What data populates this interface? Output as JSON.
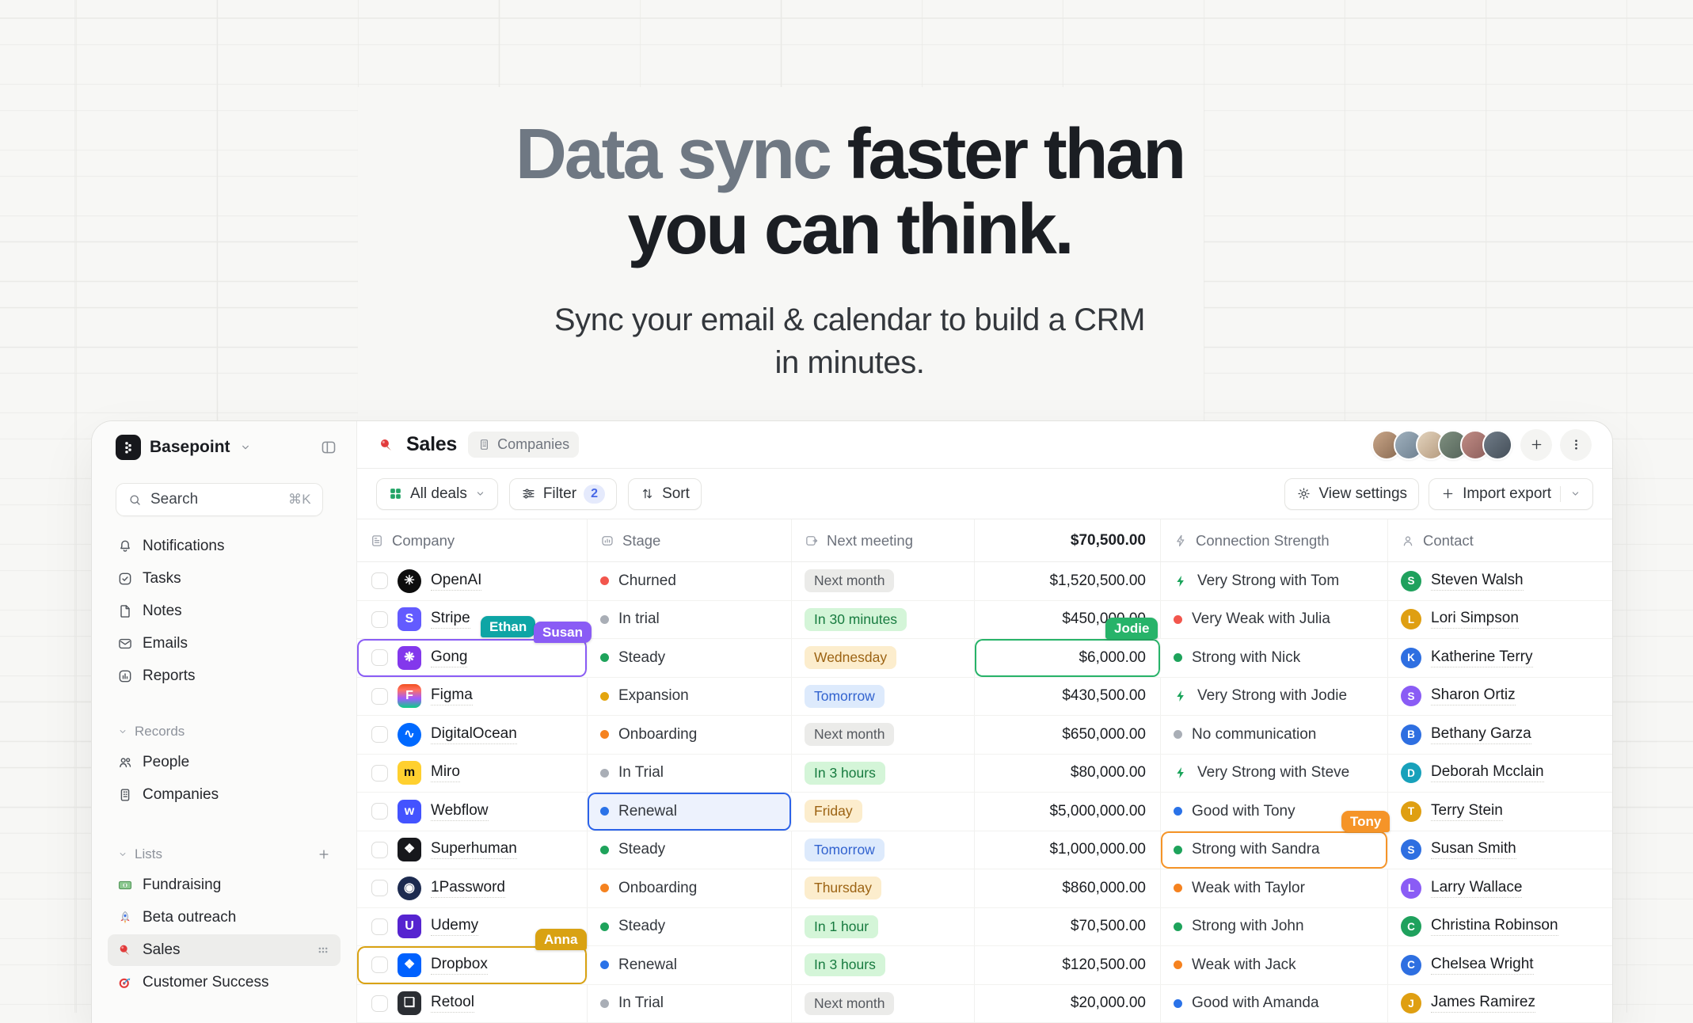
{
  "hero": {
    "title_muted": "Data sync",
    "title_rest": " faster than",
    "title_line2": "you can think.",
    "subtitle_line1": "Sync your email & calendar to build a CRM",
    "subtitle_line2": "in minutes."
  },
  "window": {
    "workspace": {
      "name": "Basepoint"
    },
    "sidebar": {
      "search": {
        "label": "Search",
        "shortcut": "⌘K"
      },
      "nav": [
        {
          "icon": "bell",
          "label": "Notifications"
        },
        {
          "icon": "task",
          "label": "Tasks"
        },
        {
          "icon": "note",
          "label": "Notes"
        },
        {
          "icon": "mail",
          "label": "Emails"
        },
        {
          "icon": "report",
          "label": "Reports"
        }
      ],
      "sections": [
        {
          "label": "Records",
          "has_add": false,
          "items": [
            {
              "icon": "people",
              "label": "People"
            },
            {
              "icon": "company",
              "label": "Companies"
            }
          ]
        },
        {
          "label": "Lists",
          "has_add": true,
          "items": [
            {
              "icon": "money",
              "label": "Fundraising"
            },
            {
              "icon": "rocket",
              "label": "Beta outreach"
            },
            {
              "icon": "pin",
              "label": "Sales",
              "active": true
            },
            {
              "icon": "target",
              "label": "Customer Success"
            }
          ]
        }
      ]
    },
    "header": {
      "title": "Sales",
      "badge_label": "Companies",
      "avatars": [
        {
          "from": "#c9a689",
          "to": "#8a6b52"
        },
        {
          "from": "#9fb0bd",
          "to": "#6e8090"
        },
        {
          "from": "#e3d3bd",
          "to": "#b49a7e"
        },
        {
          "from": "#7e8f7f",
          "to": "#55645a"
        },
        {
          "from": "#c08c85",
          "to": "#8d5f5c"
        },
        {
          "from": "#707c88",
          "to": "#454f59"
        }
      ]
    },
    "toolbar": {
      "left": [
        {
          "icon": "grid",
          "label": "All deals",
          "chevron": true
        },
        {
          "icon": "filter",
          "label": "Filter",
          "count": "2"
        },
        {
          "icon": "sort",
          "label": "Sort"
        }
      ],
      "right": [
        {
          "icon": "gear",
          "label": "View settings"
        },
        {
          "icon": "plus",
          "label": "Import export",
          "chevron": true,
          "divider": true
        }
      ]
    },
    "table": {
      "columns": [
        {
          "icon": "card",
          "label": "Company"
        },
        {
          "icon": "stage",
          "label": "Stage"
        },
        {
          "icon": "meeting",
          "label": "Next meeting"
        },
        {
          "label": "$70,500.00",
          "align": "right"
        },
        {
          "icon": "boltline",
          "label": "Connection Strength"
        },
        {
          "icon": "person",
          "label": "Contact"
        }
      ],
      "rows": [
        {
          "company": {
            "name": "OpenAI",
            "bg": "#0d0d0d",
            "fg": "#fff",
            "shape": "circle",
            "glyph": "✳"
          },
          "stage": {
            "label": "Churned",
            "tone": "red"
          },
          "meeting": {
            "label": "Next month",
            "tone": "gray"
          },
          "value": "$1,520,500.00",
          "strength": {
            "kind": "bolt",
            "tone": "green",
            "label": "Very Strong with Tom"
          },
          "contact": {
            "initial": "S",
            "tone": "green",
            "name": "Steven Walsh"
          }
        },
        {
          "company": {
            "name": "Stripe",
            "bg": "#635bff",
            "fg": "#fff",
            "shape": "rounded",
            "glyph": "S"
          },
          "stage": {
            "label": "In trial",
            "tone": "gray"
          },
          "meeting": {
            "label": "In 30 minutes",
            "tone": "green"
          },
          "value": "$450,000.00",
          "strength": {
            "kind": "dot",
            "tone": "red",
            "label": "Very Weak with Julia"
          },
          "contact": {
            "initial": "L",
            "tone": "amber",
            "name": "Lori Simpson"
          }
        },
        {
          "company": {
            "name": "Gong",
            "bg": "#8338ec",
            "fg": "#fff",
            "shape": "rounded",
            "glyph": "❋"
          },
          "stage": {
            "label": "Steady",
            "tone": "green"
          },
          "meeting": {
            "label": "Wednesday",
            "tone": "amber"
          },
          "value": "$6,000.00",
          "strength": {
            "kind": "dot",
            "tone": "green",
            "label": "Strong with Nick"
          },
          "contact": {
            "initial": "K",
            "tone": "blue",
            "name": "Katherine Terry"
          },
          "sel": {
            "company": "purple",
            "value": "green"
          }
        },
        {
          "company": {
            "name": "Figma",
            "bg": "linear-gradient(180deg,#f24e1e 0%,#ff7262 25%,#a259ff 60%,#0acf83 100%)",
            "fg": "#fff",
            "shape": "rounded",
            "glyph": "F"
          },
          "stage": {
            "label": "Expansion",
            "tone": "amber"
          },
          "meeting": {
            "label": "Tomorrow",
            "tone": "blue"
          },
          "value": "$430,500.00",
          "strength": {
            "kind": "bolt",
            "tone": "green",
            "label": "Very Strong with Jodie"
          },
          "contact": {
            "initial": "S",
            "tone": "purple",
            "name": "Sharon Ortiz"
          }
        },
        {
          "company": {
            "name": "DigitalOcean",
            "bg": "#0069ff",
            "fg": "#fff",
            "shape": "circle",
            "glyph": "∿"
          },
          "stage": {
            "label": "Onboarding",
            "tone": "orange"
          },
          "meeting": {
            "label": "Next month",
            "tone": "gray"
          },
          "value": "$650,000.00",
          "strength": {
            "kind": "dot",
            "tone": "gray",
            "label": "No communication"
          },
          "contact": {
            "initial": "B",
            "tone": "blue",
            "name": "Bethany Garza"
          }
        },
        {
          "company": {
            "name": "Miro",
            "bg": "#ffd02f",
            "fg": "#111",
            "shape": "rounded",
            "glyph": "m"
          },
          "stage": {
            "label": "In Trial",
            "tone": "gray"
          },
          "meeting": {
            "label": "In 3 hours",
            "tone": "green"
          },
          "value": "$80,000.00",
          "strength": {
            "kind": "bolt",
            "tone": "green",
            "label": "Very Strong with Steve"
          },
          "contact": {
            "initial": "D",
            "tone": "teal",
            "name": "Deborah Mcclain"
          }
        },
        {
          "company": {
            "name": "Webflow",
            "bg": "#4353ff",
            "fg": "#fff",
            "shape": "rounded",
            "glyph": "w"
          },
          "stage": {
            "label": "Renewal",
            "tone": "blue"
          },
          "meeting": {
            "label": "Friday",
            "tone": "amber"
          },
          "value": "$5,000,000.00",
          "strength": {
            "kind": "dot",
            "tone": "blue",
            "label": "Good with Tony"
          },
          "contact": {
            "initial": "T",
            "tone": "amber",
            "name": "Terry Stein"
          },
          "sel": {
            "stage": "blue"
          }
        },
        {
          "company": {
            "name": "Superhuman",
            "bg": "#17181c",
            "fg": "#fff",
            "shape": "rounded",
            "glyph": "❖"
          },
          "stage": {
            "label": "Steady",
            "tone": "green"
          },
          "meeting": {
            "label": "Tomorrow",
            "tone": "blue"
          },
          "value": "$1,000,000.00",
          "strength": {
            "kind": "dot",
            "tone": "green",
            "label": "Strong with Sandra"
          },
          "contact": {
            "initial": "S",
            "tone": "blue",
            "name": "Susan Smith"
          },
          "sel": {
            "strength": "orange"
          }
        },
        {
          "company": {
            "name": "1Password",
            "bg": "#1d2b50",
            "fg": "#fff",
            "shape": "circle",
            "glyph": "◉"
          },
          "stage": {
            "label": "Onboarding",
            "tone": "orange"
          },
          "meeting": {
            "label": "Thursday",
            "tone": "amber"
          },
          "value": "$860,000.00",
          "strength": {
            "kind": "dot",
            "tone": "orange",
            "label": "Weak with Taylor"
          },
          "contact": {
            "initial": "L",
            "tone": "purple",
            "name": "Larry Wallace"
          }
        },
        {
          "company": {
            "name": "Udemy",
            "bg": "#5624d0",
            "fg": "#fff",
            "shape": "rounded",
            "glyph": "U"
          },
          "stage": {
            "label": "Steady",
            "tone": "green"
          },
          "meeting": {
            "label": "In 1 hour",
            "tone": "green"
          },
          "value": "$70,500.00",
          "strength": {
            "kind": "dot",
            "tone": "green",
            "label": "Strong with John"
          },
          "contact": {
            "initial": "C",
            "tone": "green",
            "name": "Christina Robinson"
          }
        },
        {
          "company": {
            "name": "Dropbox",
            "bg": "#0061fe",
            "fg": "#fff",
            "shape": "rounded",
            "glyph": "❖"
          },
          "stage": {
            "label": "Renewal",
            "tone": "blue"
          },
          "meeting": {
            "label": "In 3 hours",
            "tone": "green"
          },
          "value": "$120,500.00",
          "strength": {
            "kind": "dot",
            "tone": "orange",
            "label": "Weak with Jack"
          },
          "contact": {
            "initial": "C",
            "tone": "blue",
            "name": "Chelsea Wright"
          },
          "sel": {
            "company": "amber"
          }
        },
        {
          "company": {
            "name": "Retool",
            "bg": "#2b2e33",
            "fg": "#fff",
            "shape": "rounded",
            "glyph": "❏"
          },
          "stage": {
            "label": "In Trial",
            "tone": "gray"
          },
          "meeting": {
            "label": "Next month",
            "tone": "gray"
          },
          "value": "$20,000.00",
          "strength": {
            "kind": "dot",
            "tone": "blue",
            "label": "Good with Amanda"
          },
          "contact": {
            "initial": "J",
            "tone": "amber",
            "name": "James Ramirez"
          }
        }
      ]
    },
    "cursors": [
      {
        "name": "Ethan",
        "color": "#0ea5a5"
      },
      {
        "name": "Susan",
        "color": "#8a5cf5"
      },
      {
        "name": "Jodie",
        "color": "#27b369"
      },
      {
        "name": "Tony",
        "color": "#f59428"
      },
      {
        "name": "Anna",
        "color": "#d9a213"
      }
    ]
  },
  "colors": {
    "stage_dots": {
      "red": "#f2564d",
      "gray": "#a9aeb6",
      "green": "#1ea35b",
      "amber": "#e3a50f",
      "orange": "#f5821f",
      "blue": "#2a72e8"
    },
    "avatar_tones": {
      "green": "#1fa15d",
      "amber": "#df9f12",
      "blue": "#2e6fe1",
      "purple": "#8a5cf5",
      "teal": "#18a1bb"
    },
    "bolt": "#1ba45b"
  }
}
